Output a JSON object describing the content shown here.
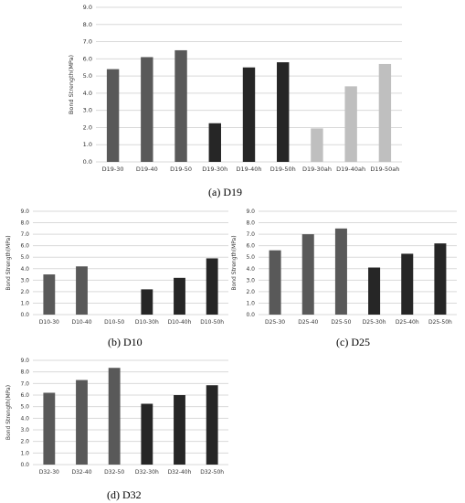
{
  "colors": {
    "series1": "#595959",
    "series2": "#262626",
    "series3": "#bfbfbf",
    "grid": "#d9d9d9"
  },
  "chart_data": [
    {
      "type": "bar",
      "caption": "(a) D19",
      "ylabel": "Bond Strength(MPa)",
      "ylim": [
        0,
        9
      ],
      "yticks": [
        "0.0",
        "1.0",
        "2.0",
        "3.0",
        "4.0",
        "5.0",
        "6.0",
        "7.0",
        "8.0",
        "9.0"
      ],
      "grid": true,
      "categories": [
        "D19-30",
        "D19-40",
        "D19-50",
        "D19-30h",
        "D19-40h",
        "D19-50h",
        "D19-30ah",
        "D19-40ah",
        "D19-50ah"
      ],
      "values": [
        5.4,
        6.1,
        6.5,
        2.25,
        5.5,
        5.8,
        1.95,
        4.4,
        5.7
      ],
      "color_groups": [
        1,
        1,
        1,
        2,
        2,
        2,
        3,
        3,
        3
      ]
    },
    {
      "type": "bar",
      "caption": "(b) D10",
      "ylabel": "Bond Strength(MPa)",
      "ylim": [
        0,
        9
      ],
      "yticks": [
        "0.0",
        "1.0",
        "2.0",
        "3.0",
        "4.0",
        "5.0",
        "6.0",
        "7.0",
        "8.0",
        "9.0"
      ],
      "grid": true,
      "categories": [
        "D10-30",
        "D10-40",
        "D10-50",
        "D10-30h",
        "D10-40h",
        "D10-50h"
      ],
      "values": [
        3.5,
        4.2,
        0,
        2.2,
        3.2,
        4.9
      ],
      "color_groups": [
        1,
        1,
        1,
        2,
        2,
        2
      ]
    },
    {
      "type": "bar",
      "caption": "(c) D25",
      "ylabel": "Bond Strength(MPa)",
      "ylim": [
        0,
        9
      ],
      "yticks": [
        "0.0",
        "1.0",
        "2.0",
        "3.0",
        "4.0",
        "5.0",
        "6.0",
        "7.0",
        "8.0",
        "9.0"
      ],
      "grid": true,
      "categories": [
        "D25-30",
        "D25-40",
        "D25-50",
        "D25-30h",
        "D25-40h",
        "D25-50h"
      ],
      "values": [
        5.6,
        7.0,
        7.5,
        4.1,
        5.3,
        6.2
      ],
      "color_groups": [
        1,
        1,
        1,
        2,
        2,
        2
      ]
    },
    {
      "type": "bar",
      "caption": "(d) D32",
      "ylabel": "Bond Strength(MPa)",
      "ylim": [
        0,
        9
      ],
      "yticks": [
        "0.0",
        "1.0",
        "2.0",
        "3.0",
        "4.0",
        "5.0",
        "6.0",
        "7.0",
        "8.0",
        "9.0"
      ],
      "grid": true,
      "categories": [
        "D32-30",
        "D32-40",
        "D32-50",
        "D32-30h",
        "D32-40h",
        "D32-50h"
      ],
      "values": [
        6.2,
        7.3,
        8.35,
        5.25,
        6.0,
        6.85
      ],
      "color_groups": [
        1,
        1,
        1,
        2,
        2,
        2
      ]
    }
  ]
}
